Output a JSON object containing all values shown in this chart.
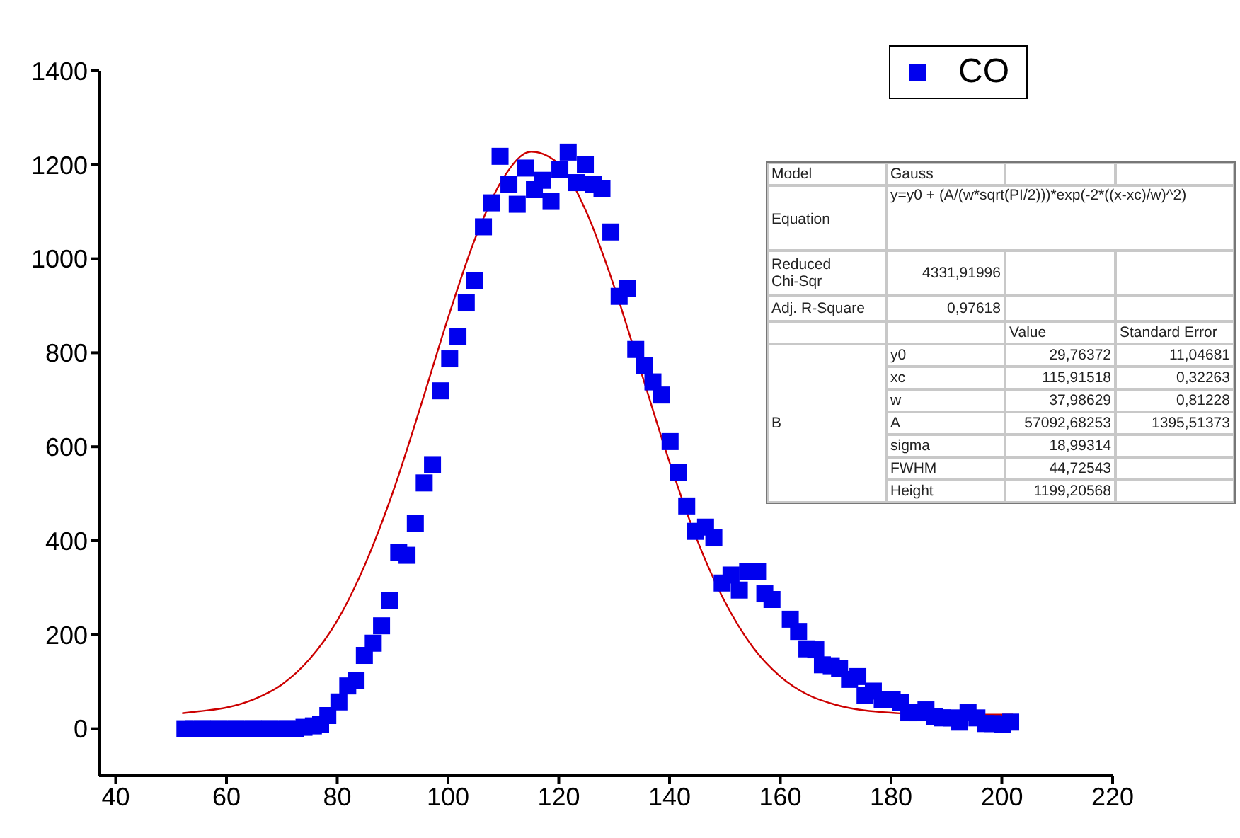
{
  "chart_data": {
    "type": "scatter",
    "marker": "square",
    "legend": "top right",
    "xlim": [
      37,
      220
    ],
    "xticks": [
      40,
      60,
      80,
      100,
      120,
      140,
      160,
      180,
      200,
      220
    ],
    "ylim": [
      -100,
      1400
    ],
    "yticks": [
      0,
      200,
      400,
      600,
      800,
      1000,
      1200,
      1400
    ],
    "series": [
      {
        "name": "CO",
        "color": "#0000ee",
        "x": [
          52.5,
          54.0,
          55.6,
          57.1,
          58.6,
          60.2,
          61.7,
          63.2,
          64.8,
          66.3,
          67.8,
          69.4,
          70.9,
          72.5,
          74.0,
          75.7,
          77.0,
          78.3,
          80.3,
          81.9,
          83.4,
          84.9,
          86.5,
          88.0,
          89.5,
          91.1,
          92.6,
          94.1,
          95.7,
          97.2,
          98.7,
          100.3,
          101.8,
          103.3,
          104.8,
          106.4,
          107.9,
          109.4,
          111.0,
          112.5,
          114.0,
          115.6,
          117.1,
          118.6,
          120.2,
          121.7,
          123.2,
          124.8,
          126.3,
          127.8,
          129.4,
          130.9,
          132.4,
          133.9,
          135.5,
          137.0,
          138.5,
          140.1,
          141.6,
          143.1,
          144.7,
          146.5,
          148.0,
          149.5,
          151.1,
          152.6,
          154.1,
          155.9,
          157.2,
          158.5,
          161.8,
          163.3,
          164.8,
          166.4,
          167.6,
          169.2,
          170.7,
          172.5,
          174.0,
          175.3,
          176.8,
          178.4,
          180.2,
          181.7,
          183.2,
          184.8,
          186.3,
          187.8,
          189.3,
          190.9,
          192.4,
          193.9,
          195.5,
          197.0,
          198.3,
          200.1,
          201.6
        ],
        "values": [
          0,
          0,
          0,
          0,
          0,
          0,
          0,
          0,
          0,
          0,
          0,
          0,
          0,
          0,
          3,
          6,
          9,
          28,
          57,
          91,
          102,
          156,
          182,
          219,
          273,
          375,
          369,
          437,
          523,
          562,
          719,
          787,
          835,
          906,
          954,
          1068,
          1119,
          1218,
          1159,
          1116,
          1193,
          1147,
          1167,
          1122,
          1190,
          1227,
          1162,
          1201,
          1159,
          1150,
          1057,
          920,
          937,
          807,
          772,
          738,
          710,
          611,
          545,
          474,
          420,
          429,
          406,
          310,
          327,
          295,
          335,
          335,
          287,
          275,
          233,
          207,
          170,
          168,
          136,
          134,
          128,
          105,
          111,
          71,
          80,
          62,
          62,
          56,
          34,
          34,
          40,
          26,
          23,
          23,
          14,
          34,
          23,
          11,
          11,
          9,
          14
        ]
      },
      {
        "type": "line",
        "color": "#cc0000",
        "marker": "none",
        "x": [
          52,
          55,
          60,
          65,
          70,
          75,
          80,
          85,
          90,
          95,
          100,
          105,
          110,
          115,
          120,
          125,
          130,
          135,
          140,
          145,
          150,
          155,
          160,
          165,
          170,
          180,
          190,
          202
        ],
        "values": [
          33,
          37,
          45,
          63,
          94,
          148,
          230,
          349,
          502,
          684,
          874,
          1046,
          1172,
          1228,
          1202,
          1099,
          941,
          754,
          567,
          401,
          270,
          174,
          111,
          72,
          51,
          34,
          30,
          30
        ]
      }
    ],
    "annotations": [
      "Model",
      "Gauss",
      "Equation",
      "y=y0 + (A/(w*sqrt(PI/2)))*exp(-2*((x-xc)/w)^2)",
      "Reduced Chi-Sqr",
      "4331,91996",
      "Adj. R-Square",
      "0,97618",
      "Value",
      "Standard Error",
      "B",
      "y0",
      "29,76372",
      "11,04681",
      "xc",
      "115,91518",
      "0,32263",
      "w",
      "37,98629",
      "0,81228",
      "A",
      "57092,68253",
      "1395,51373",
      "sigma",
      "18,99314",
      "FWHM",
      "44,72543",
      "Height",
      "1199,20568"
    ]
  }
}
